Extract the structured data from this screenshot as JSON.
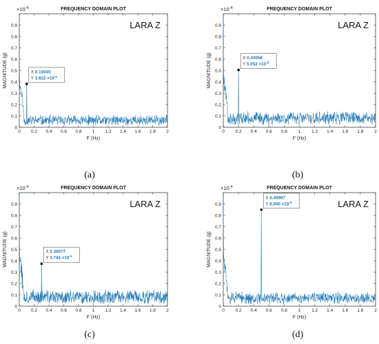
{
  "colors": {
    "line": "#1f77b4",
    "axis": "#262626",
    "datatip_value": "#1f77b4",
    "background": "#ffffff"
  },
  "chart_data": [
    {
      "type": "line",
      "panel": "(a)",
      "title": "FREQUENCY DOMAIN PLOT",
      "xlabel": "F (Hz)",
      "ylabel": "MAGNITUDE (g)",
      "y_exponent": "×10",
      "y_exponent_power": "-4",
      "xlim": [
        0,
        2
      ],
      "ylim": [
        0,
        1
      ],
      "xticks": [
        "0",
        "0.2",
        "0.4",
        "0.6",
        "0.8",
        "1",
        "1.2",
        "1.4",
        "1.6",
        "1.8",
        "2"
      ],
      "yticks": [
        "0",
        "0.1",
        "0.2",
        "0.3",
        "0.4",
        "0.5",
        "0.6",
        "0.7",
        "0.8",
        "0.9"
      ],
      "annotation": "LARA Z",
      "series": [
        {
          "peak_x": 0.10045,
          "peak_y": 0.3822,
          "noise_level": 0.06,
          "noise_amp": 0.045,
          "seed": 11
        }
      ],
      "datatip": {
        "x_label": "X",
        "x_value": "0.10045",
        "y_label": "Y",
        "y_value": "3.822",
        "y_suffix": " ×10",
        "y_power": "-5"
      }
    },
    {
      "type": "line",
      "panel": "(b)",
      "title": "FREQUENCY DOMAIN PLOT",
      "xlabel": "F (Hz)",
      "ylabel": "MAGNITUDE (g)",
      "y_exponent": "×10",
      "y_exponent_power": "-4",
      "xlim": [
        0,
        2
      ],
      "ylim": [
        0,
        1
      ],
      "xticks": [
        "0",
        "0.2",
        "0.4",
        "0.6",
        "0.8",
        "1",
        "1.2",
        "1.4",
        "1.6",
        "1.8",
        "2"
      ],
      "yticks": [
        "0",
        "0.1",
        "0.2",
        "0.3",
        "0.4",
        "0.5",
        "0.6",
        "0.7",
        "0.8",
        "0.9"
      ],
      "annotation": "LARA Z",
      "series": [
        {
          "peak_x": 0.20058,
          "peak_y": 0.5052,
          "noise_level": 0.08,
          "noise_amp": 0.055,
          "seed": 23
        }
      ],
      "datatip": {
        "x_label": "X",
        "x_value": "0.20058",
        "y_label": "Y",
        "y_value": "5.052",
        "y_suffix": " ×10",
        "y_power": "-5"
      }
    },
    {
      "type": "line",
      "panel": "(c)",
      "title": "FREQUENCY DOMAIN PLOT",
      "xlabel": "F (Hz)",
      "ylabel": "MAGNITUDE (g)",
      "y_exponent": "×10",
      "y_exponent_power": "-4",
      "xlim": [
        0,
        2
      ],
      "ylim": [
        0,
        1
      ],
      "xticks": [
        "0",
        "0.2",
        "0.4",
        "0.6",
        "0.8",
        "1",
        "1.2",
        "1.4",
        "1.6",
        "1.8",
        "2"
      ],
      "yticks": [
        "0",
        "0.1",
        "0.2",
        "0.3",
        "0.4",
        "0.5",
        "0.6",
        "0.7",
        "0.8",
        "0.9"
      ],
      "annotation": "LARA Z",
      "series": [
        {
          "peak_x": 0.30077,
          "peak_y": 0.3744,
          "noise_level": 0.08,
          "noise_amp": 0.06,
          "seed": 37
        }
      ],
      "datatip": {
        "x_label": "X",
        "x_value": "0.30077",
        "y_label": "Y",
        "y_value": "3.744",
        "y_suffix": " ×10",
        "y_power": "-5"
      }
    },
    {
      "type": "line",
      "panel": "(d)",
      "title": "FREQUENCY DOMAIN PLOT",
      "xlabel": "F (Hz)",
      "ylabel": "MAGNITUDE (g)",
      "y_exponent": "×10",
      "y_exponent_power": "-4",
      "xlim": [
        0,
        2
      ],
      "ylim": [
        0,
        1
      ],
      "xticks": [
        "0",
        "0.2",
        "0.4",
        "0.6",
        "0.8",
        "1",
        "1.2",
        "1.4",
        "1.6",
        "1.8",
        "2"
      ],
      "yticks": [
        "0",
        "0.1",
        "0.2",
        "0.3",
        "0.4",
        "0.5",
        "0.6",
        "0.7",
        "0.8",
        "0.9"
      ],
      "annotation": "LARA Z",
      "series": [
        {
          "peak_x": 0.49997,
          "peak_y": 0.85,
          "noise_level": 0.07,
          "noise_amp": 0.05,
          "seed": 51
        }
      ],
      "datatip": {
        "x_label": "X",
        "x_value": "0.49997",
        "y_label": "Y",
        "y_value": "8.500",
        "y_suffix": " ×10",
        "y_power": "-5"
      }
    }
  ]
}
